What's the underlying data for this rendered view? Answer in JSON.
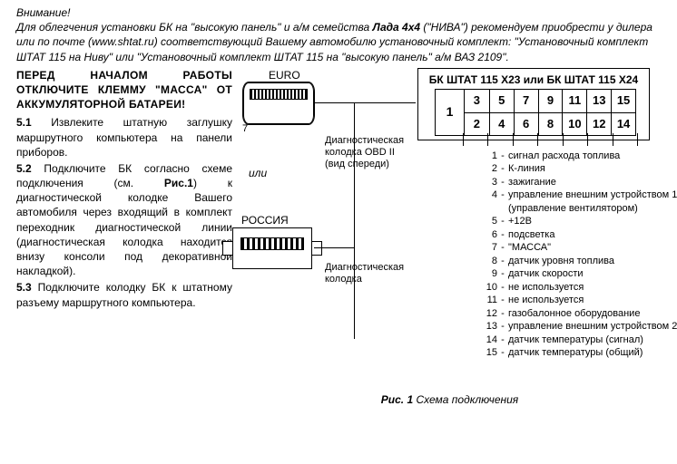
{
  "warning_line": "Внимание!",
  "intro_html": {
    "prefix": "Для облегчения установки БК на \"высокую панель\" и а/м семейства ",
    "bold": "Лада 4х4",
    "suffix": " (\"НИВА\") рекомендуем приобрести у дилера или по почте (www.shtat.ru) соответствующий Вашему автомобилю установочный комплект: \"Установочный комплект ШТАТ 115 на Ниву\" или \"Установочный комплект ШТАТ 115 на \"высокую панель\" а/м ВАЗ 2109\"."
  },
  "pre_start": "ПЕРЕД НАЧАЛОМ РАБОТЫ ОТКЛЮЧИТЕ КЛЕММУ \"МАССА\" ОТ АККУМУЛЯТОРНОЙ БАТАРЕИ!",
  "steps": {
    "s51_num": "5.1",
    "s51": " Извлеките штатную заглушку маршрутного компьютера на панели приборов.",
    "s52_num": "5.2",
    "s52a": " Подключите БК согласно схеме подключения (см. ",
    "s52_fig": "Рис.1",
    "s52b": ") к диагностической колодке Вашего автомобиля через входящий в комплект переходник диагностической линии (диагностическая колодка находится внизу консоли под декоративной накладкой).",
    "s53_num": "5.3",
    "s53": " Подключите колодку БК к штатному разъему маршрутного компьютера."
  },
  "diagram": {
    "euro_label": "EURO",
    "russia_label": "РОССИЯ",
    "or_label": "или",
    "diag_block_obd": "Диагностическая\nколодка OBD II\n(вид спереди)",
    "diag_block": "Диагностическая\nколодка",
    "bk_title": "БК ШТАТ 115 Х23 или БК ШТАТ 115 Х24",
    "pin1": "1",
    "top_row": [
      "3",
      "5",
      "7",
      "9",
      "11",
      "13",
      "15"
    ],
    "bottom_row": [
      "2",
      "4",
      "6",
      "8",
      "10",
      "12",
      "14"
    ]
  },
  "pins": [
    {
      "n": "1",
      "t": "сигнал расхода топлива"
    },
    {
      "n": "2",
      "t": "К-линия"
    },
    {
      "n": "3",
      "t": "зажигание"
    },
    {
      "n": "4",
      "t": "управление внешним устройством 1\n(управление вентилятором)"
    },
    {
      "n": "5",
      "t": "+12В"
    },
    {
      "n": "6",
      "t": "подсветка"
    },
    {
      "n": "7",
      "t": "\"МАССА\""
    },
    {
      "n": "8",
      "t": "датчик уровня топлива"
    },
    {
      "n": "9",
      "t": "датчик скорости"
    },
    {
      "n": "10",
      "t": "не используется"
    },
    {
      "n": "11",
      "t": "не используется"
    },
    {
      "n": "12",
      "t": "газобалонное оборудование"
    },
    {
      "n": "13",
      "t": "управление внешним устройством 2"
    },
    {
      "n": "14",
      "t": "датчик температуры (сигнал)"
    },
    {
      "n": "15",
      "t": "датчик температуры (общий)"
    }
  ],
  "figure": {
    "num": "Рис. 1",
    "caption": "  Схема подключения"
  }
}
